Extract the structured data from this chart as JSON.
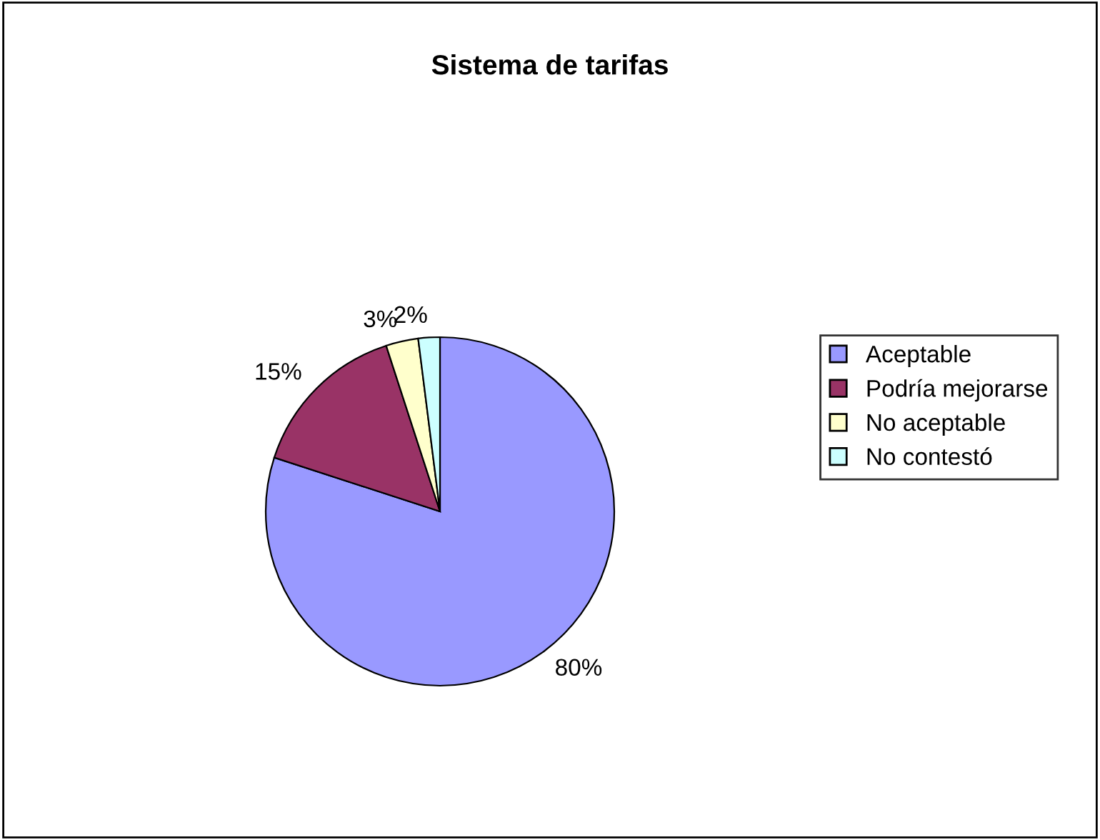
{
  "chart_data": {
    "type": "pie",
    "title": "Sistema de tarifas",
    "categories": [
      "Aceptable",
      "Podría mejorarse",
      "No aceptable",
      "No contestó"
    ],
    "values": [
      80,
      15,
      3,
      2
    ],
    "value_labels": [
      "80%",
      "15%",
      "3%",
      "2%"
    ],
    "colors": [
      "#9999ff",
      "#993366",
      "#ffffcc",
      "#ccffff"
    ],
    "legend": "right"
  }
}
